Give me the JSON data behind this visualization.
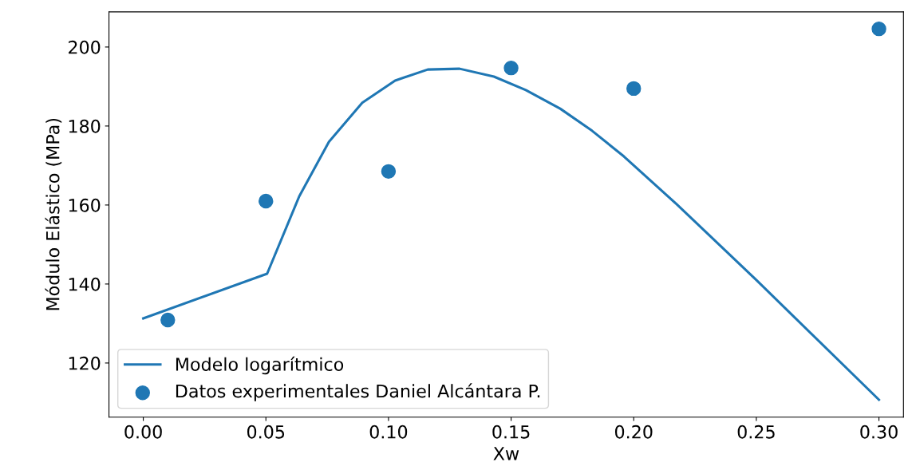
{
  "chart_data": {
    "type": "line",
    "xlabel": "Xw",
    "ylabel": "Módulo Elástico (MPa)",
    "xlim": [
      -0.014,
      0.31
    ],
    "ylim": [
      106.3,
      208.9
    ],
    "xticks": [
      {
        "value": 0,
        "label": "0.00"
      },
      {
        "value": 0.05,
        "label": "0.05"
      },
      {
        "value": 0.1,
        "label": "0.10"
      },
      {
        "value": 0.15,
        "label": "0.15"
      },
      {
        "value": 0.2,
        "label": "0.20"
      },
      {
        "value": 0.25,
        "label": "0.25"
      },
      {
        "value": 0.3,
        "label": "0.30"
      }
    ],
    "yticks": [
      120,
      140,
      160,
      180,
      200
    ],
    "grid": false,
    "legend": "bottom left",
    "series": [
      {
        "name": "Modelo logarítmico",
        "color": "#1f77b4",
        "x": [
          0,
          0.0505,
          0.0636,
          0.0757,
          0.0893,
          0.1027,
          0.116,
          0.129,
          0.143,
          0.156,
          0.17,
          0.183,
          0.196,
          0.2175,
          0.25,
          0.3
        ],
        "values": [
          131.3,
          142.6,
          162.2,
          176,
          185.9,
          191.5,
          194.3,
          194.5,
          192.5,
          189.1,
          184.4,
          178.8,
          172.3,
          160.2,
          141,
          110.7
        ]
      },
      {
        "name": "Datos experimentales Daniel Alcántara P.",
        "type": "scatter",
        "color": "#1f77b4",
        "marker": "circle",
        "x": [
          0.01,
          0.05,
          0.1,
          0.15,
          0.2,
          0.3
        ],
        "values": [
          130.9,
          161,
          168.5,
          194.7,
          189.5,
          204.6
        ]
      }
    ]
  }
}
